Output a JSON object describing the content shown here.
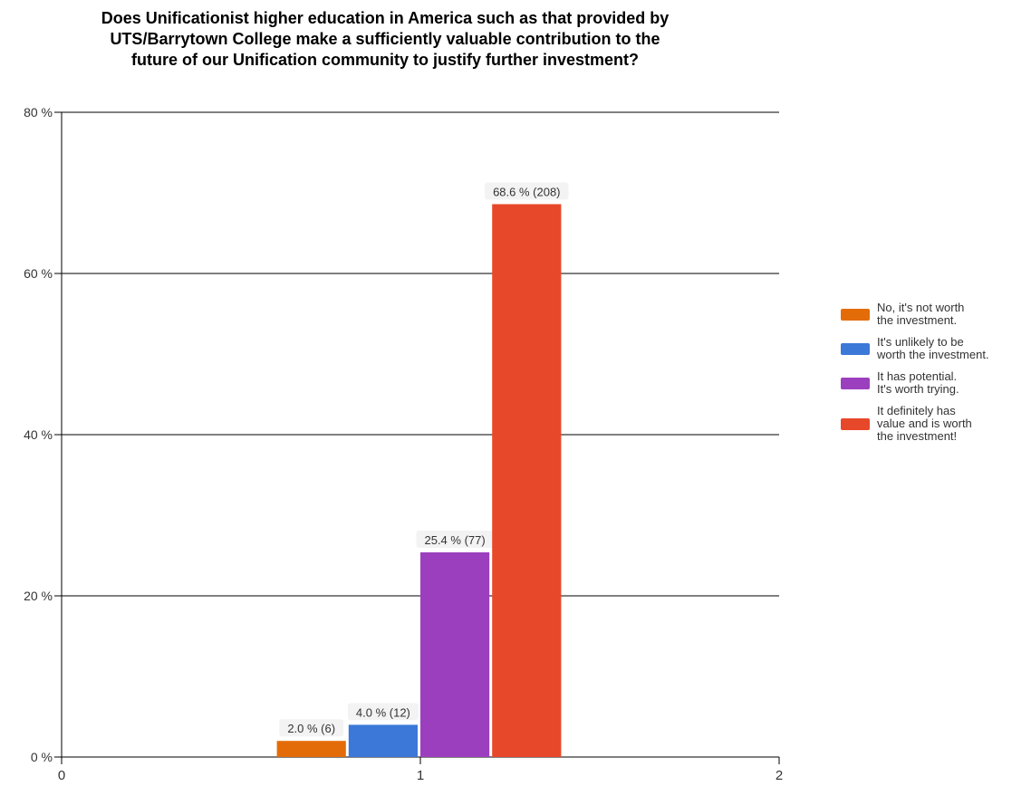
{
  "chart_data": {
    "type": "bar",
    "title": [
      "Does Unificationist higher education in America such as that provided by",
      "UTS/Barrytown College make a sufficiently valuable contribution to the",
      "future of our Unification community to justify further investment?"
    ],
    "xlabel": "",
    "ylabel": "",
    "x_ticks": [
      "0",
      "1",
      "2"
    ],
    "y_ticks": [
      "0 %",
      "20 %",
      "40 %",
      "60 %",
      "80 %"
    ],
    "xlim": [
      0,
      2
    ],
    "ylim": [
      0,
      80
    ],
    "grid": true,
    "legend_position": "right",
    "category_x": 1,
    "series": [
      {
        "name": "No, it's not worth\nthe investment.",
        "value": 2.0,
        "count": 6,
        "label": "2.0 % (6)",
        "color": "#e36c09"
      },
      {
        "name": "It's unlikely to be\nworth the investment.",
        "value": 4.0,
        "count": 12,
        "label": "4.0 % (12)",
        "color": "#3c78d8"
      },
      {
        "name": "It has potential.\nIt's worth trying.",
        "value": 25.4,
        "count": 77,
        "label": "25.4 % (77)",
        "color": "#9b3fbf"
      },
      {
        "name": "It definitely has\nvalue and is worth\nthe investment!",
        "value": 68.6,
        "count": 208,
        "label": "68.6 % (208)",
        "color": "#e8482a"
      }
    ]
  }
}
